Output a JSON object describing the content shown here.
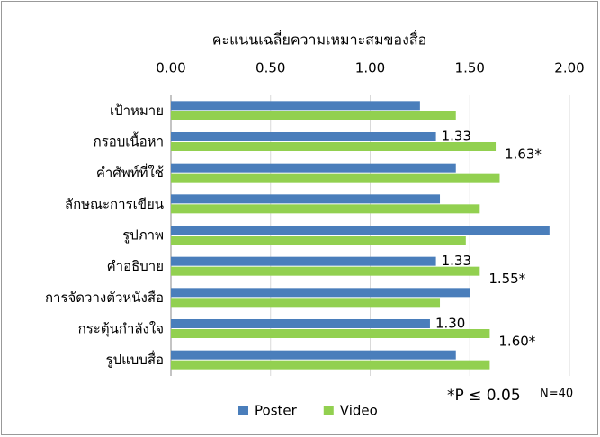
{
  "chart_data": {
    "type": "bar",
    "orientation": "horizontal",
    "title": "คะแนนเฉลี่ยความเหมาะสมของสื่อ",
    "categories": [
      "เป้าหมาย",
      "กรอบเนื้อหา",
      "คำศัพท์ที่ใช้",
      "ลักษณะการเขียน",
      "รูปภาพ",
      "คำอธิบาย",
      "การจัดวางตัวหนังสือ",
      "กระตุ้นกำลังใจ",
      "รูปแบบสื่อ"
    ],
    "series": [
      {
        "name": "Poster",
        "color": "#4a7ebb",
        "values": [
          1.25,
          1.33,
          1.43,
          1.35,
          1.9,
          1.33,
          1.5,
          1.3,
          1.43
        ],
        "value_labels": [
          null,
          "1.33",
          null,
          null,
          null,
          "1.33",
          null,
          "1.30",
          null
        ]
      },
      {
        "name": "Video",
        "color": "#92d050",
        "values": [
          1.43,
          1.63,
          1.65,
          1.55,
          1.48,
          1.55,
          1.35,
          1.6,
          1.6
        ],
        "value_labels": [
          null,
          "1.63*",
          null,
          null,
          null,
          "1.55*",
          null,
          "1.60*",
          null
        ]
      }
    ],
    "xlim": [
      0,
      2
    ],
    "xticks": [
      {
        "value": 0,
        "label": "0.00"
      },
      {
        "value": 0.5,
        "label": "0.50"
      },
      {
        "value": 1,
        "label": "1.00"
      },
      {
        "value": 1.5,
        "label": "1.50"
      },
      {
        "value": 2,
        "label": "2.00"
      }
    ],
    "grid": true,
    "legend": "bottom",
    "annotations": [
      "*P ≤ 0.05",
      "N=40"
    ]
  }
}
